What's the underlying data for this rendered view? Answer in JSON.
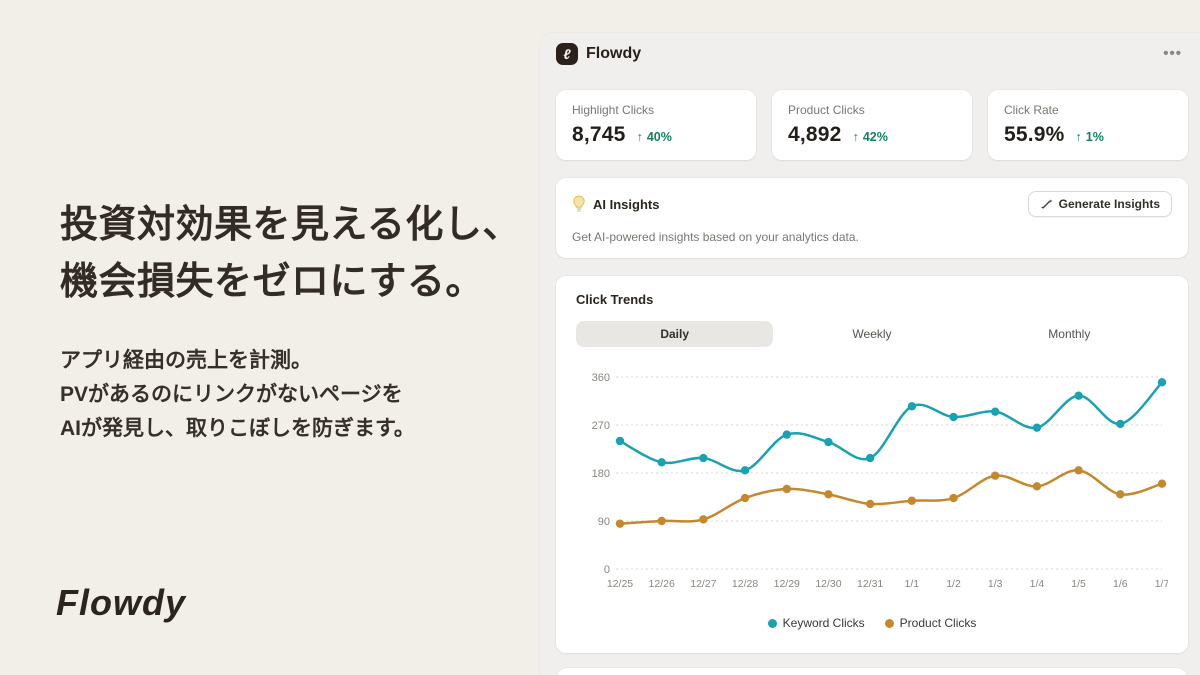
{
  "hero": {
    "headline": [
      "投資対効果を見える化し、",
      "機会損失をゼロにする。"
    ],
    "subtext": [
      "アプリ経由の売上を計測。",
      "PVがあるのにリンクがないページを",
      "AIが発見し、取りこぼしを防ぎます。"
    ],
    "brand": "Flowdy"
  },
  "app_header": {
    "logo_glyph": "ℓ",
    "title": "Flowdy",
    "menu_icon": "•••"
  },
  "stats": [
    {
      "label": "Highlight Clicks",
      "value": "8,745",
      "arrow": "↑",
      "delta": "40%"
    },
    {
      "label": "Product Clicks",
      "value": "4,892",
      "arrow": "↑",
      "delta": "42%"
    },
    {
      "label": "Click Rate",
      "value": "55.9%",
      "arrow": "↑",
      "delta": "1%"
    }
  ],
  "ai_insights": {
    "title": "AI Insights",
    "button_label": "Generate Insights",
    "description": "Get AI-powered insights based on your analytics data."
  },
  "trends": {
    "title": "Click Trends",
    "tabs": [
      "Daily",
      "Weekly",
      "Monthly"
    ],
    "active_tab": "Daily"
  },
  "chart_data": {
    "type": "line",
    "x": [
      "12/25",
      "12/26",
      "12/27",
      "12/28",
      "12/29",
      "12/30",
      "12/31",
      "1/1",
      "1/2",
      "1/3",
      "1/4",
      "1/5",
      "1/6",
      "1/7"
    ],
    "series": [
      {
        "name": "Keyword Clicks",
        "color": "#18a2b2",
        "values": [
          240,
          200,
          208,
          185,
          252,
          238,
          208,
          305,
          285,
          295,
          265,
          325,
          272,
          350
        ]
      },
      {
        "name": "Product Clicks",
        "color": "#c5882d",
        "values": [
          85,
          90,
          93,
          133,
          150,
          140,
          122,
          128,
          133,
          175,
          155,
          185,
          140,
          160
        ]
      }
    ],
    "ylim": [
      0,
      360
    ],
    "yticks": [
      0,
      90,
      180,
      270,
      360
    ],
    "grid": "dotted-horizontal",
    "legend_position": "bottom"
  },
  "colors": {
    "accent_teal": "#18a2b2",
    "accent_gold": "#c5882d",
    "positive_green": "#15805f",
    "background_cream": "#f2efe8",
    "panel_gray": "#f0efed",
    "card_white": "#ffffff"
  }
}
